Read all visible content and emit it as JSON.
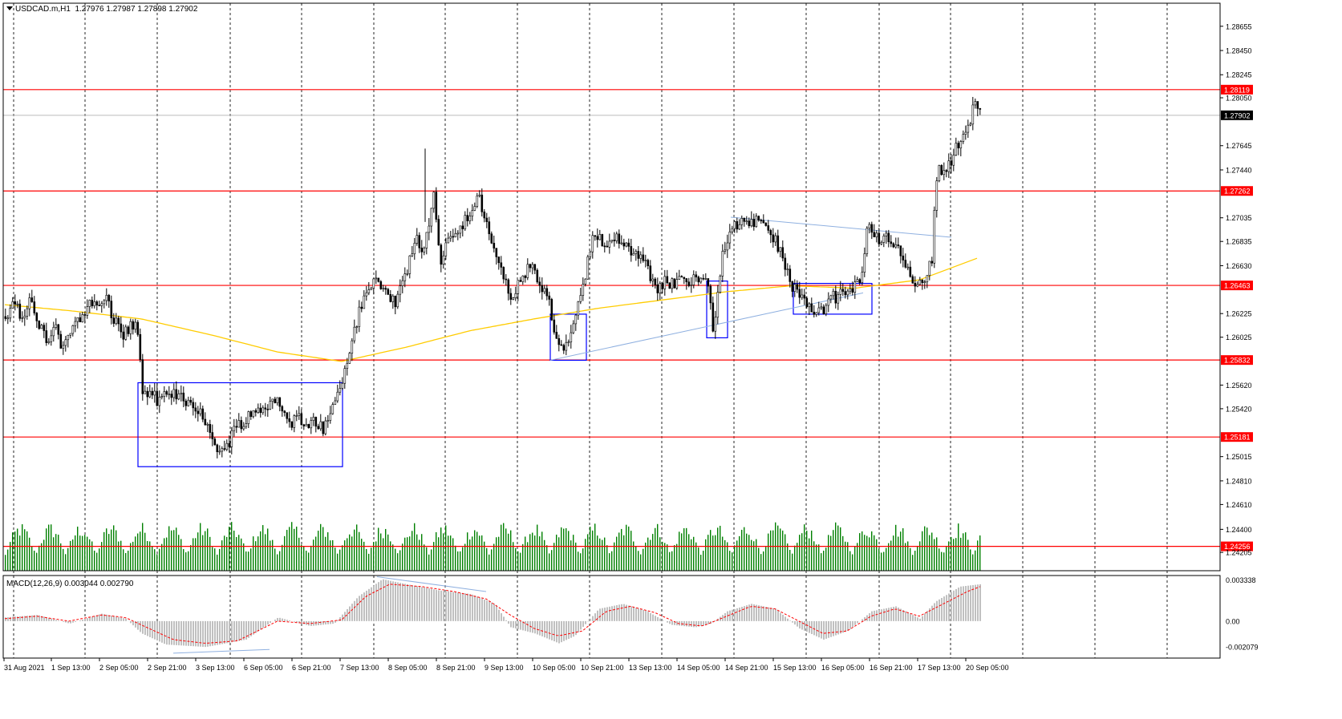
{
  "header": {
    "symbol": "USDCAD.m,H1",
    "ohlc": "1.27976 1.27987 1.27898 1.27902"
  },
  "macd_label": {
    "name": "MACD(12,26,9)",
    "values": "0.003044 0.002790"
  },
  "colors": {
    "candle": "#000000",
    "hline": "#ff0000",
    "ma": "#ffcc00",
    "box": "#0000ff",
    "trend": "#8fb0e0",
    "volume": "#008000",
    "macd_hist": "#c0c0c0",
    "macd_signal": "#ff0000",
    "price_tag": "#ff0000",
    "current_tag": "#000000"
  },
  "chart_data": {
    "type": "candlestick",
    "price_axis": {
      "ticks": [
        "1.28655",
        "1.28450",
        "1.28245",
        "1.28050",
        "1.27645",
        "1.27440",
        "1.27035",
        "1.26835",
        "1.26630",
        "1.26225",
        "1.26025",
        "1.25620",
        "1.25420",
        "1.25015",
        "1.24810",
        "1.24610",
        "1.24400",
        "1.24205"
      ],
      "ylim": [
        1.2405,
        1.2885
      ]
    },
    "levels": [
      {
        "label": "1.28119",
        "value": 1.28119
      },
      {
        "label": "1.27262",
        "value": 1.27262
      },
      {
        "label": "1.26463",
        "value": 1.26463
      },
      {
        "label": "1.25832",
        "value": 1.25832
      },
      {
        "label": "1.25181",
        "value": 1.25181
      },
      {
        "label": "1.24256",
        "value": 1.24256
      }
    ],
    "current_price": {
      "label": "1.27902",
      "value": 1.27902
    },
    "time_axis": [
      "31 Aug 2021",
      "1 Sep 13:00",
      "2 Sep 05:00",
      "2 Sep 21:00",
      "3 Sep 13:00",
      "6 Sep 05:00",
      "6 Sep 21:00",
      "7 Sep 13:00",
      "8 Sep 05:00",
      "8 Sep 21:00",
      "9 Sep 13:00",
      "10 Sep 05:00",
      "10 Sep 21:00",
      "13 Sep 13:00",
      "14 Sep 05:00",
      "14 Sep 21:00",
      "15 Sep 13:00",
      "16 Sep 05:00",
      "16 Sep 21:00",
      "17 Sep 13:00",
      "20 Sep 05:00"
    ],
    "close_path": [
      [
        0,
        1.262
      ],
      [
        10,
        1.2632
      ],
      [
        22,
        1.2618
      ],
      [
        30,
        1.2632
      ],
      [
        40,
        1.2615
      ],
      [
        52,
        1.26
      ],
      [
        62,
        1.261
      ],
      [
        72,
        1.259
      ],
      [
        82,
        1.2612
      ],
      [
        94,
        1.2622
      ],
      [
        106,
        1.263
      ],
      [
        116,
        1.2628
      ],
      [
        124,
        1.2638
      ],
      [
        134,
        1.262
      ],
      [
        144,
        1.2605
      ],
      [
        154,
        1.261
      ],
      [
        164,
        1.2615
      ],
      [
        170,
        1.256
      ],
      [
        180,
        1.2552
      ],
      [
        192,
        1.255
      ],
      [
        204,
        1.2552
      ],
      [
        216,
        1.2555
      ],
      [
        228,
        1.2548
      ],
      [
        238,
        1.2545
      ],
      [
        246,
        1.2535
      ],
      [
        254,
        1.252
      ],
      [
        262,
        1.2512
      ],
      [
        272,
        1.2505
      ],
      [
        282,
        1.252
      ],
      [
        292,
        1.253
      ],
      [
        302,
        1.2535
      ],
      [
        314,
        1.254
      ],
      [
        326,
        1.2545
      ],
      [
        336,
        1.2552
      ],
      [
        346,
        1.2535
      ],
      [
        356,
        1.253
      ],
      [
        366,
        1.2535
      ],
      [
        376,
        1.2532
      ],
      [
        388,
        1.253
      ],
      [
        398,
        1.2525
      ],
      [
        408,
        1.2545
      ],
      [
        418,
        1.256
      ],
      [
        428,
        1.259
      ],
      [
        436,
        1.261
      ],
      [
        444,
        1.263
      ],
      [
        454,
        1.2645
      ],
      [
        464,
        1.2652
      ],
      [
        474,
        1.264
      ],
      [
        484,
        1.2632
      ],
      [
        494,
        1.2642
      ],
      [
        504,
        1.267
      ],
      [
        512,
        1.2685
      ],
      [
        520,
        1.2672
      ],
      [
        528,
        1.27
      ],
      [
        534,
        1.272
      ],
      [
        542,
        1.2668
      ],
      [
        550,
        1.2682
      ],
      [
        560,
        1.269
      ],
      [
        570,
        1.27
      ],
      [
        580,
        1.2705
      ],
      [
        590,
        1.272
      ],
      [
        598,
        1.27
      ],
      [
        606,
        1.2685
      ],
      [
        614,
        1.267
      ],
      [
        622,
        1.265
      ],
      [
        630,
        1.2635
      ],
      [
        638,
        1.2645
      ],
      [
        648,
        1.2658
      ],
      [
        658,
        1.266
      ],
      [
        668,
        1.2645
      ],
      [
        678,
        1.263
      ],
      [
        686,
        1.26
      ],
      [
        694,
        1.259
      ],
      [
        702,
        1.26
      ],
      [
        710,
        1.262
      ],
      [
        718,
        1.2635
      ],
      [
        726,
        1.2665
      ],
      [
        734,
        1.269
      ],
      [
        744,
        1.2685
      ],
      [
        754,
        1.2682
      ],
      [
        764,
        1.2688
      ],
      [
        774,
        1.268
      ],
      [
        784,
        1.2675
      ],
      [
        794,
        1.2675
      ],
      [
        804,
        1.265
      ],
      [
        814,
        1.2645
      ],
      [
        824,
        1.265
      ],
      [
        834,
        1.2648
      ],
      [
        844,
        1.265
      ],
      [
        854,
        1.2652
      ],
      [
        864,
        1.2655
      ],
      [
        874,
        1.2652
      ],
      [
        882,
        1.261
      ],
      [
        888,
        1.264
      ],
      [
        896,
        1.268
      ],
      [
        904,
        1.269
      ],
      [
        914,
        1.27
      ],
      [
        924,
        1.2702
      ],
      [
        934,
        1.27
      ],
      [
        944,
        1.2695
      ],
      [
        954,
        1.269
      ],
      [
        964,
        1.268
      ],
      [
        972,
        1.266
      ],
      [
        980,
        1.2648
      ],
      [
        990,
        1.2638
      ],
      [
        1000,
        1.2628
      ],
      [
        1010,
        1.2618
      ],
      [
        1020,
        1.2628
      ],
      [
        1030,
        1.2635
      ],
      [
        1040,
        1.2638
      ],
      [
        1050,
        1.264
      ],
      [
        1060,
        1.2645
      ],
      [
        1068,
        1.266
      ],
      [
        1074,
        1.2695
      ],
      [
        1084,
        1.2688
      ],
      [
        1094,
        1.2685
      ],
      [
        1104,
        1.2685
      ],
      [
        1114,
        1.268
      ],
      [
        1124,
        1.266
      ],
      [
        1134,
        1.265
      ],
      [
        1142,
        1.2645
      ],
      [
        1150,
        1.2658
      ],
      [
        1156,
        1.267
      ],
      [
        1160,
        1.274
      ],
      [
        1168,
        1.2745
      ],
      [
        1176,
        1.275
      ],
      [
        1184,
        1.276
      ],
      [
        1192,
        1.277
      ],
      [
        1200,
        1.278
      ],
      [
        1206,
        1.2795
      ],
      [
        1212,
        1.2798
      ],
      [
        1216,
        1.279
      ]
    ],
    "moving_average": [
      [
        0,
        1.263
      ],
      [
        80,
        1.2625
      ],
      [
        170,
        1.2618
      ],
      [
        260,
        1.2604
      ],
      [
        340,
        1.259
      ],
      [
        420,
        1.2582
      ],
      [
        500,
        1.2594
      ],
      [
        580,
        1.2608
      ],
      [
        660,
        1.2618
      ],
      [
        740,
        1.2627
      ],
      [
        820,
        1.2634
      ],
      [
        900,
        1.2641
      ],
      [
        980,
        1.2646
      ],
      [
        1060,
        1.2644
      ],
      [
        1140,
        1.2651
      ],
      [
        1215,
        1.267
      ]
    ],
    "boxes": [
      {
        "x": [
          166,
          421
        ],
        "y": [
          1.2564,
          1.2493
        ]
      },
      {
        "x": [
          680,
          725
        ],
        "y": [
          1.2622,
          1.2583
        ]
      },
      {
        "x": [
          875,
          901
        ],
        "y": [
          1.265,
          1.2602
        ]
      },
      {
        "x": [
          983,
          1081
        ],
        "y": [
          1.2648,
          1.2622
        ]
      }
    ],
    "trendlines": [
      {
        "x": [
          680,
          1070
        ],
        "y": [
          1.2583,
          1.264
        ]
      },
      {
        "x": [
          905,
          1180
        ],
        "y": [
          1.2704,
          1.2687
        ]
      }
    ],
    "macd": {
      "ylim": [
        -0.003,
        0.0037
      ],
      "ticks": [
        "0.003338",
        "0.00",
        "-0.002079"
      ],
      "histogram": [
        [
          0,
          0.0003
        ],
        [
          40,
          0.0005
        ],
        [
          80,
          -0.0002
        ],
        [
          120,
          0.0006
        ],
        [
          150,
          0.0002
        ],
        [
          170,
          -0.001
        ],
        [
          200,
          -0.0019
        ],
        [
          250,
          -0.0021
        ],
        [
          300,
          -0.0015
        ],
        [
          340,
          0.0003
        ],
        [
          380,
          -0.0004
        ],
        [
          410,
          -0.0002
        ],
        [
          440,
          0.002
        ],
        [
          470,
          0.0034
        ],
        [
          500,
          0.003
        ],
        [
          540,
          0.0025
        ],
        [
          580,
          0.0022
        ],
        [
          610,
          0.0014
        ],
        [
          630,
          -0.0005
        ],
        [
          660,
          -0.001
        ],
        [
          690,
          -0.0018
        ],
        [
          710,
          -0.0012
        ],
        [
          740,
          0.001
        ],
        [
          770,
          0.0014
        ],
        [
          800,
          0.0008
        ],
        [
          830,
          -0.0003
        ],
        [
          860,
          -0.0005
        ],
        [
          880,
          -0.0002
        ],
        [
          900,
          0.0008
        ],
        [
          930,
          0.0014
        ],
        [
          960,
          0.001
        ],
        [
          990,
          -0.0006
        ],
        [
          1020,
          -0.0015
        ],
        [
          1050,
          -0.0008
        ],
        [
          1080,
          0.0008
        ],
        [
          1110,
          0.0012
        ],
        [
          1140,
          0.0002
        ],
        [
          1160,
          0.0016
        ],
        [
          1190,
          0.0028
        ],
        [
          1216,
          0.003
        ]
      ],
      "signal": [
        [
          0,
          0.0002
        ],
        [
          40,
          0.0004
        ],
        [
          80,
          0.0
        ],
        [
          120,
          0.0005
        ],
        [
          150,
          0.0003
        ],
        [
          180,
          -0.0006
        ],
        [
          210,
          -0.0015
        ],
        [
          250,
          -0.0018
        ],
        [
          290,
          -0.0016
        ],
        [
          340,
          0.0
        ],
        [
          380,
          -0.0002
        ],
        [
          420,
          0.0001
        ],
        [
          450,
          0.002
        ],
        [
          480,
          0.003
        ],
        [
          520,
          0.0028
        ],
        [
          560,
          0.0024
        ],
        [
          600,
          0.0018
        ],
        [
          630,
          0.0005
        ],
        [
          660,
          -0.0006
        ],
        [
          690,
          -0.0012
        ],
        [
          720,
          -0.0008
        ],
        [
          750,
          0.0008
        ],
        [
          780,
          0.0012
        ],
        [
          810,
          0.0007
        ],
        [
          840,
          -0.0002
        ],
        [
          870,
          -0.0004
        ],
        [
          900,
          0.0004
        ],
        [
          930,
          0.0012
        ],
        [
          960,
          0.001
        ],
        [
          990,
          0.0
        ],
        [
          1020,
          -0.001
        ],
        [
          1050,
          -0.0008
        ],
        [
          1080,
          0.0004
        ],
        [
          1110,
          0.001
        ],
        [
          1140,
          0.0004
        ],
        [
          1170,
          0.0014
        ],
        [
          1200,
          0.0024
        ],
        [
          1216,
          0.0028
        ]
      ]
    }
  }
}
